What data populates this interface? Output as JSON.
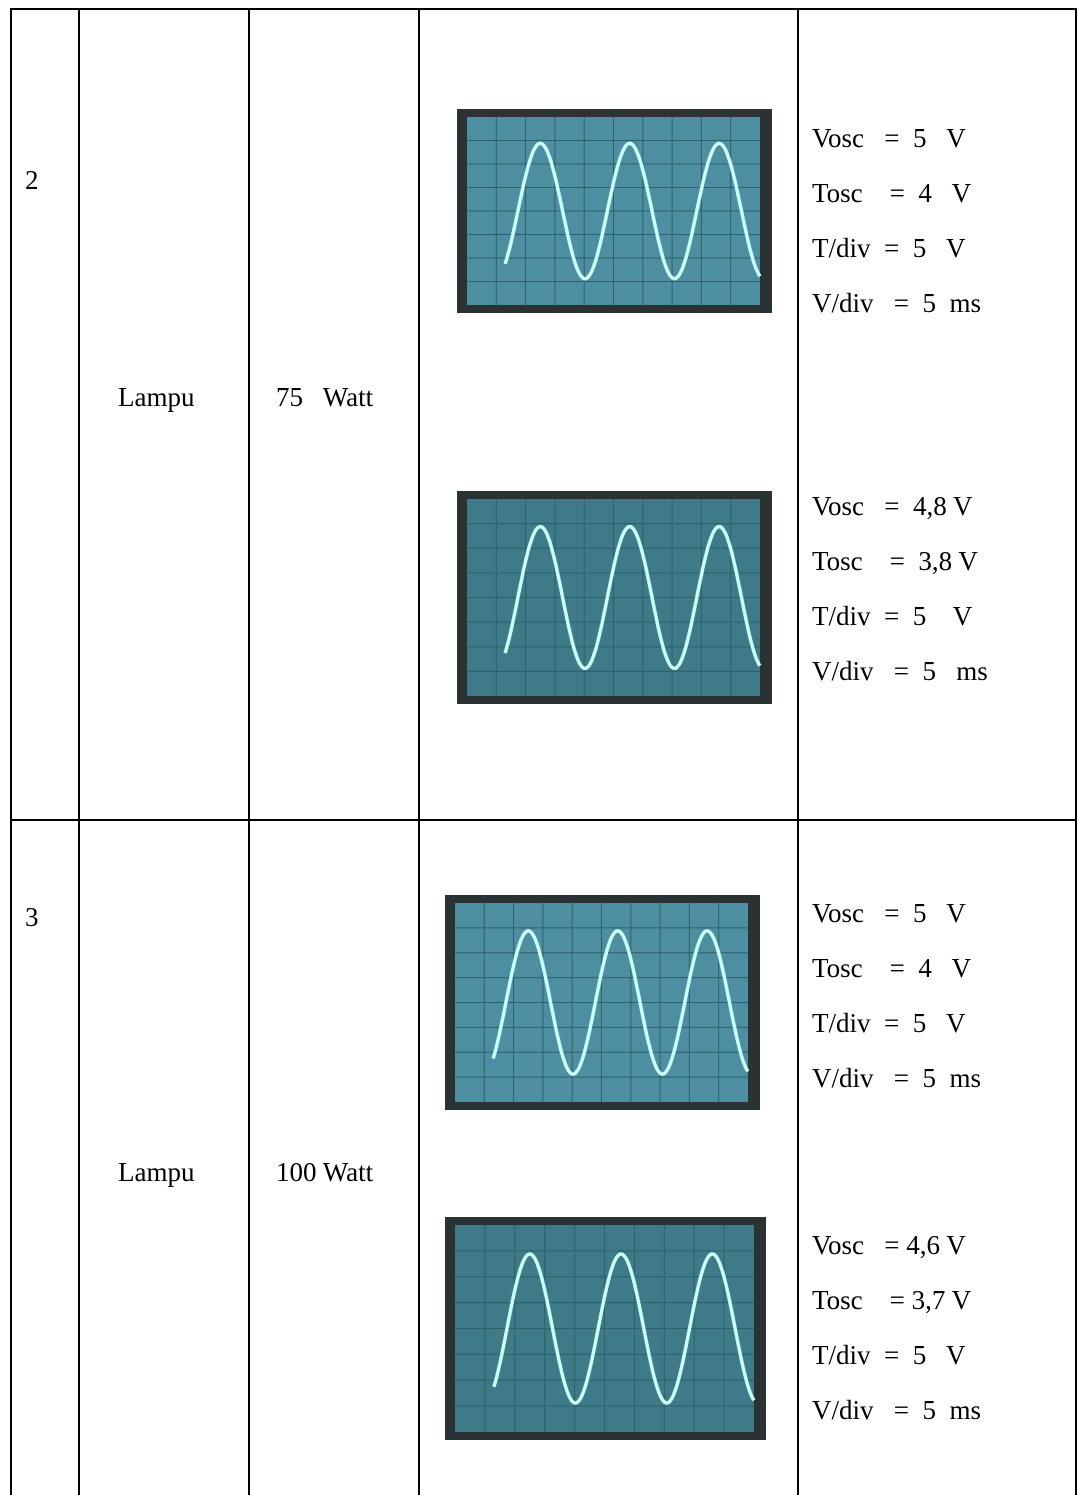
{
  "rows": [
    {
      "no": "2",
      "item": "Lampu",
      "power": "75   Watt",
      "measurements": [
        [
          "Vosc   =  5   V",
          "Tosc    =  4   V",
          "T/div  =  5   V",
          "V/div   =  5  ms"
        ],
        [
          "Vosc   =  4,8 V",
          "Tosc    =  3,8 V",
          "T/div  =  5    V",
          "V/div   =  5   ms"
        ]
      ]
    },
    {
      "no": "3",
      "item": "Lampu",
      "power": "100 Watt",
      "measurements": [
        [
          "Vosc   =  5   V",
          "Tosc    =  4   V",
          "T/div  =  5   V",
          "V/div   =  5  ms"
        ],
        [
          "Vosc   = 4,6 V",
          "Tosc    = 3,7 V",
          "T/div  =  5   V",
          "V/div   =  5  ms"
        ]
      ]
    }
  ]
}
